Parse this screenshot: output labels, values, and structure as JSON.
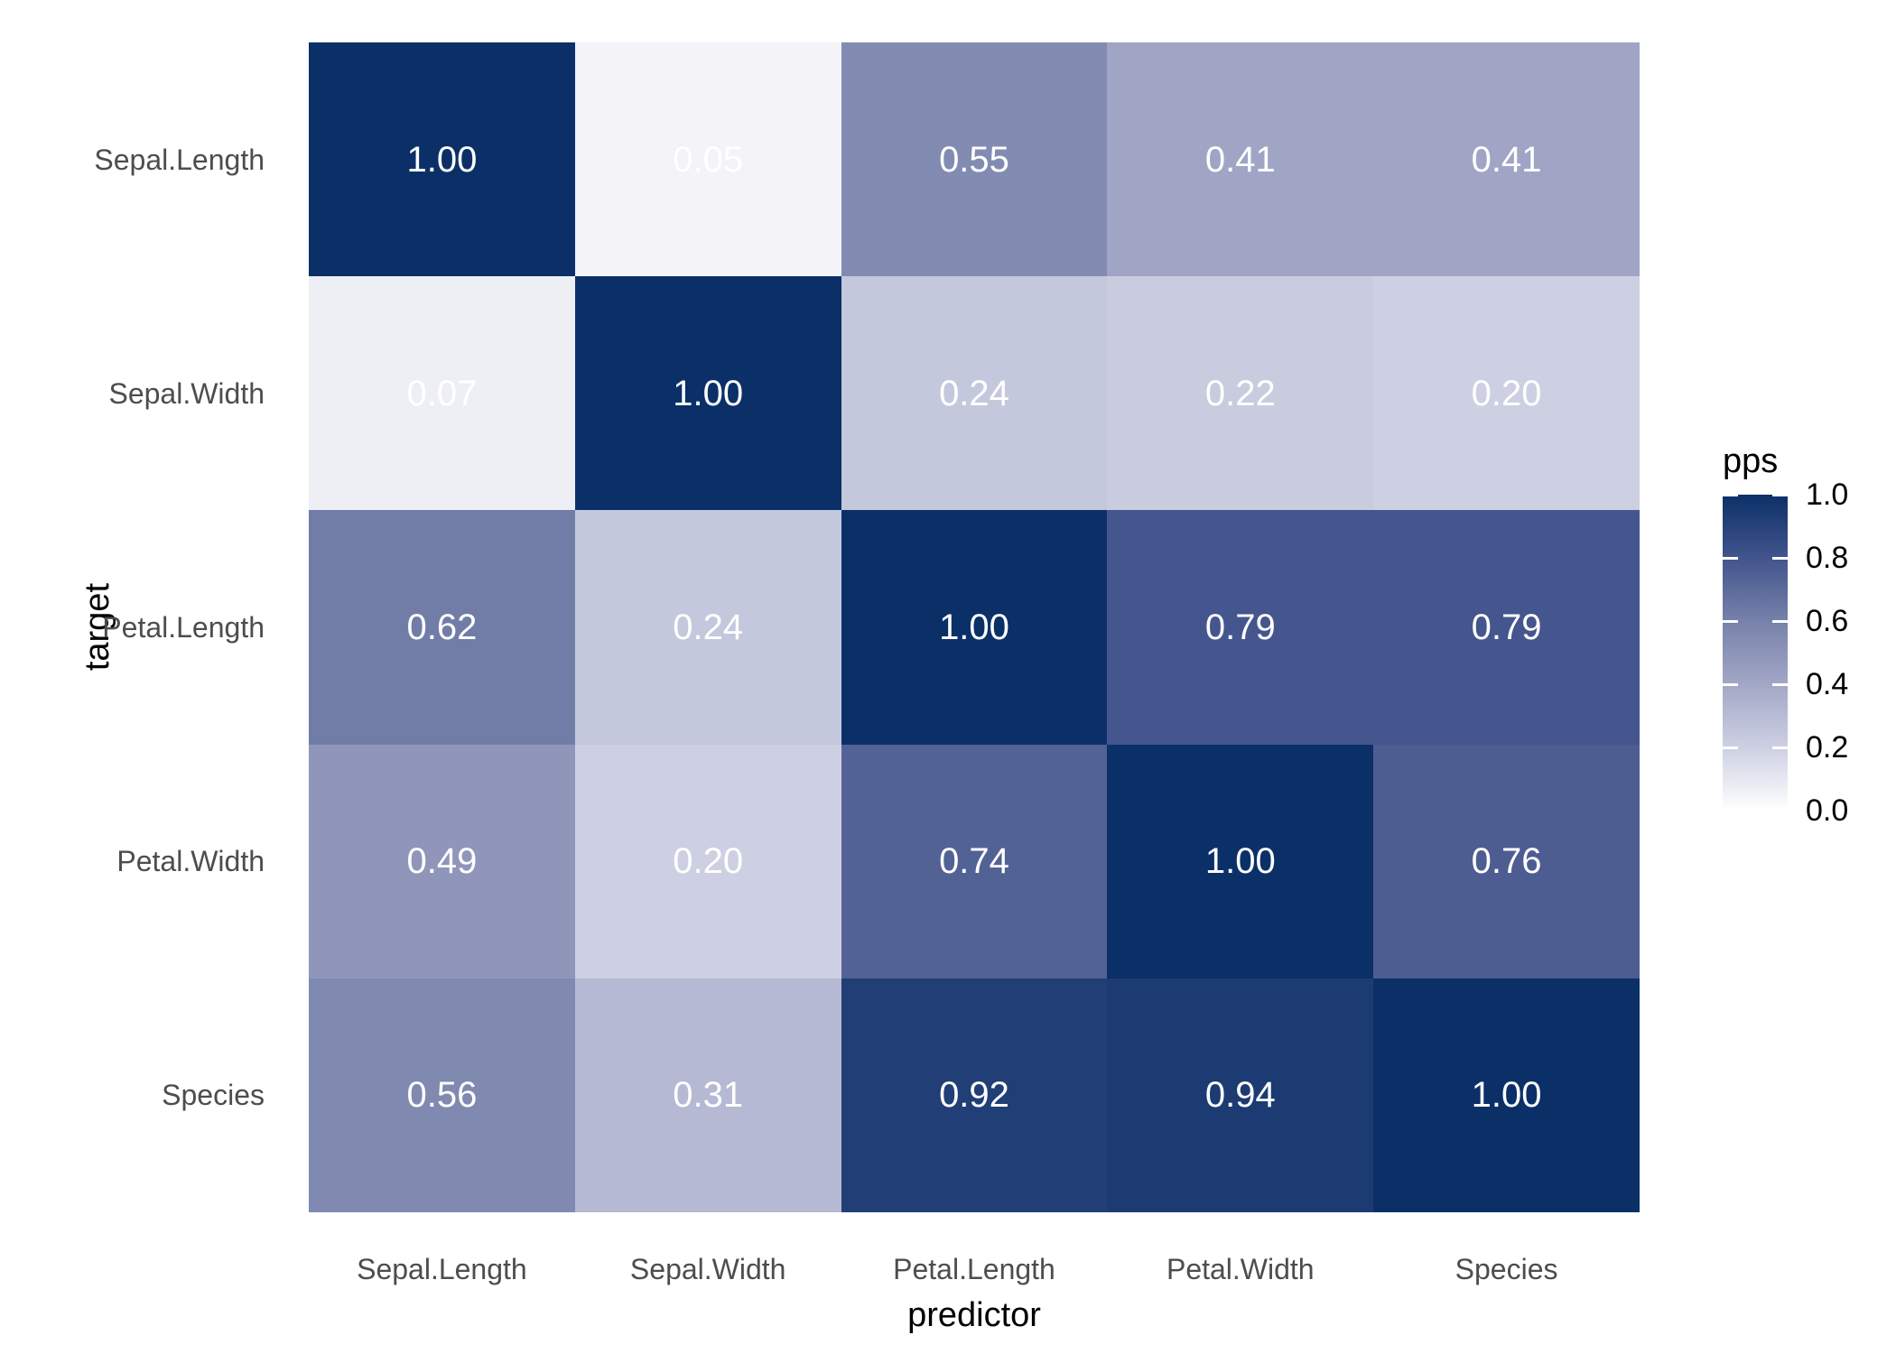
{
  "figure": {
    "background": "#ffffff"
  },
  "chart_data": {
    "type": "heatmap",
    "title": "",
    "xlabel": "predictor",
    "ylabel": "target",
    "x_categories": [
      "Sepal.Length",
      "Sepal.Width",
      "Petal.Length",
      "Petal.Width",
      "Species"
    ],
    "y_categories": [
      "Sepal.Length",
      "Sepal.Width",
      "Petal.Length",
      "Petal.Width",
      "Species"
    ],
    "matrix": [
      [
        1.0,
        0.05,
        0.55,
        0.41,
        0.41
      ],
      [
        0.07,
        1.0,
        0.24,
        0.22,
        0.2
      ],
      [
        0.62,
        0.24,
        1.0,
        0.79,
        0.79
      ],
      [
        0.49,
        0.2,
        0.74,
        1.0,
        0.76
      ],
      [
        0.56,
        0.31,
        0.92,
        0.94,
        1.0
      ]
    ],
    "value_format_decimals": 2,
    "value_range": [
      0,
      1
    ],
    "grid": false,
    "cell_text_color": "#ffffff",
    "axis_text_color": "#4d4d4d",
    "axis_title_color": "#000000",
    "color_scale": {
      "stops": [
        {
          "pos": 0.0,
          "color": "#ffffff"
        },
        {
          "pos": 0.2,
          "color": "#cdd0e2"
        },
        {
          "pos": 0.4,
          "color": "#a2a7c6"
        },
        {
          "pos": 0.6,
          "color": "#7781aa"
        },
        {
          "pos": 0.8,
          "color": "#42548c"
        },
        {
          "pos": 1.0,
          "color": "#0b3068"
        }
      ]
    },
    "legend": {
      "title": "pps",
      "position": "right",
      "tick_labels": [
        "1.0",
        "0.8",
        "0.6",
        "0.4",
        "0.2",
        "0.0"
      ],
      "tick_values": [
        1.0,
        0.8,
        0.6,
        0.4,
        0.2,
        0.0
      ]
    }
  }
}
